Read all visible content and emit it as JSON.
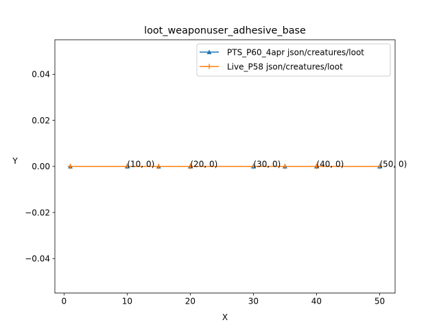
{
  "chart_data": {
    "type": "line",
    "title": "loot_weaponuser_adhesive_base",
    "xlabel": "X",
    "ylabel": "Y",
    "xlim": [
      -1.45,
      52.45
    ],
    "ylim": [
      -0.055,
      0.055
    ],
    "xticks": [
      0,
      10,
      20,
      30,
      40,
      50
    ],
    "yticks": [
      -0.04,
      -0.02,
      0.0,
      0.02,
      0.04
    ],
    "xtick_labels": [
      "0",
      "10",
      "20",
      "30",
      "40",
      "50"
    ],
    "ytick_labels": [
      "−0.04",
      "−0.02",
      "0.00",
      "0.02",
      "0.04"
    ],
    "grid": false,
    "legend_position": "top-right",
    "series": [
      {
        "name": "PTS_P60_4apr json/creatures/loot",
        "color": "#1f77b4",
        "marker": "triangle",
        "x": [
          1,
          10,
          15,
          20,
          30,
          35,
          40,
          50
        ],
        "y": [
          0,
          0,
          0,
          0,
          0,
          0,
          0,
          0
        ]
      },
      {
        "name": "Live_P58 json/creatures/loot",
        "color": "#ff7f0e",
        "marker": "plus",
        "x": [
          1,
          10,
          15,
          20,
          30,
          35,
          40,
          50
        ],
        "y": [
          0,
          0,
          0,
          0,
          0,
          0,
          0,
          0
        ]
      }
    ],
    "annotations": [
      "(10, 0)",
      "(20, 0)",
      "(30, 0)",
      "(40, 0)",
      "(50, 0)"
    ]
  }
}
